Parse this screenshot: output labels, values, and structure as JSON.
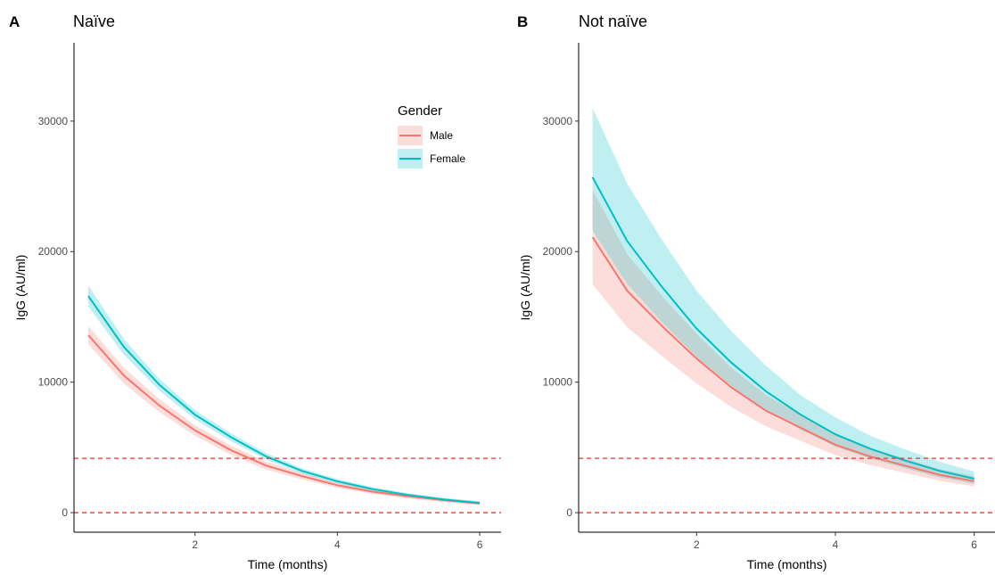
{
  "chart_data": [
    {
      "type": "line",
      "panel_letter": "A",
      "title": "Naïve",
      "xlabel": "Time (months)",
      "ylabel": "IgG (AU/ml)",
      "xlim": [
        0.3,
        6.3
      ],
      "ylim": [
        -1500,
        36000
      ],
      "xticks": [
        2,
        4,
        6
      ],
      "yticks": [
        0,
        10000,
        20000,
        30000
      ],
      "grid": false,
      "legend": {
        "title": "Gender",
        "position": "top-right",
        "entries": [
          "Male",
          "Female"
        ]
      },
      "reference_lines": [
        0,
        4160
      ],
      "x": [
        0.5,
        1,
        1.5,
        2,
        2.5,
        3,
        3.5,
        4,
        4.5,
        5,
        5.5,
        6
      ],
      "series": [
        {
          "name": "Male",
          "color": "#F8766D",
          "values": [
            13600,
            10500,
            8200,
            6300,
            4800,
            3600,
            2800,
            2100,
            1600,
            1250,
            950,
            700
          ],
          "lower": [
            12900,
            9900,
            7700,
            5900,
            4450,
            3300,
            2550,
            1900,
            1420,
            1080,
            800,
            570
          ],
          "upper": [
            14300,
            11100,
            8700,
            6700,
            5150,
            3900,
            3050,
            2300,
            1780,
            1420,
            1100,
            830
          ]
        },
        {
          "name": "Female",
          "color": "#00BFC4",
          "values": [
            16600,
            12700,
            9800,
            7500,
            5800,
            4300,
            3200,
            2400,
            1800,
            1350,
            1000,
            750
          ],
          "lower": [
            15800,
            12100,
            9350,
            7150,
            5500,
            4050,
            3000,
            2230,
            1650,
            1220,
            880,
            640
          ],
          "upper": [
            17400,
            13300,
            10250,
            7850,
            6100,
            4550,
            3400,
            2570,
            1950,
            1480,
            1120,
            860
          ]
        }
      ]
    },
    {
      "type": "line",
      "panel_letter": "B",
      "title": "Not naïve",
      "xlabel": "Time (months)",
      "ylabel": "IgG (AU/ml)",
      "xlim": [
        0.3,
        6.3
      ],
      "ylim": [
        -1500,
        36000
      ],
      "xticks": [
        2,
        4,
        6
      ],
      "yticks": [
        0,
        10000,
        20000,
        30000
      ],
      "grid": false,
      "reference_lines": [
        0,
        4160
      ],
      "x": [
        0.5,
        1,
        1.5,
        2,
        2.5,
        3,
        3.5,
        4,
        4.5,
        5,
        5.5,
        6
      ],
      "series": [
        {
          "name": "Male",
          "color": "#F8766D",
          "values": [
            21100,
            17000,
            14300,
            11800,
            9600,
            7800,
            6500,
            5200,
            4300,
            3600,
            2900,
            2400
          ],
          "lower": [
            17500,
            14200,
            12000,
            9900,
            8100,
            6600,
            5500,
            4400,
            3650,
            3050,
            2450,
            2000
          ],
          "upper": [
            24700,
            19800,
            16600,
            13700,
            11100,
            9000,
            7500,
            6000,
            4950,
            4150,
            3350,
            2800
          ]
        },
        {
          "name": "Female",
          "color": "#00BFC4",
          "values": [
            25700,
            20800,
            17300,
            14100,
            11500,
            9300,
            7500,
            6000,
            4900,
            4000,
            3200,
            2600
          ],
          "lower": [
            21600,
            17500,
            14600,
            11900,
            9700,
            7850,
            6350,
            5050,
            4150,
            3400,
            2700,
            2200
          ],
          "upper": [
            31000,
            25200,
            20900,
            17000,
            13900,
            11250,
            9000,
            7300,
            5900,
            4850,
            3900,
            3150
          ]
        }
      ]
    }
  ]
}
